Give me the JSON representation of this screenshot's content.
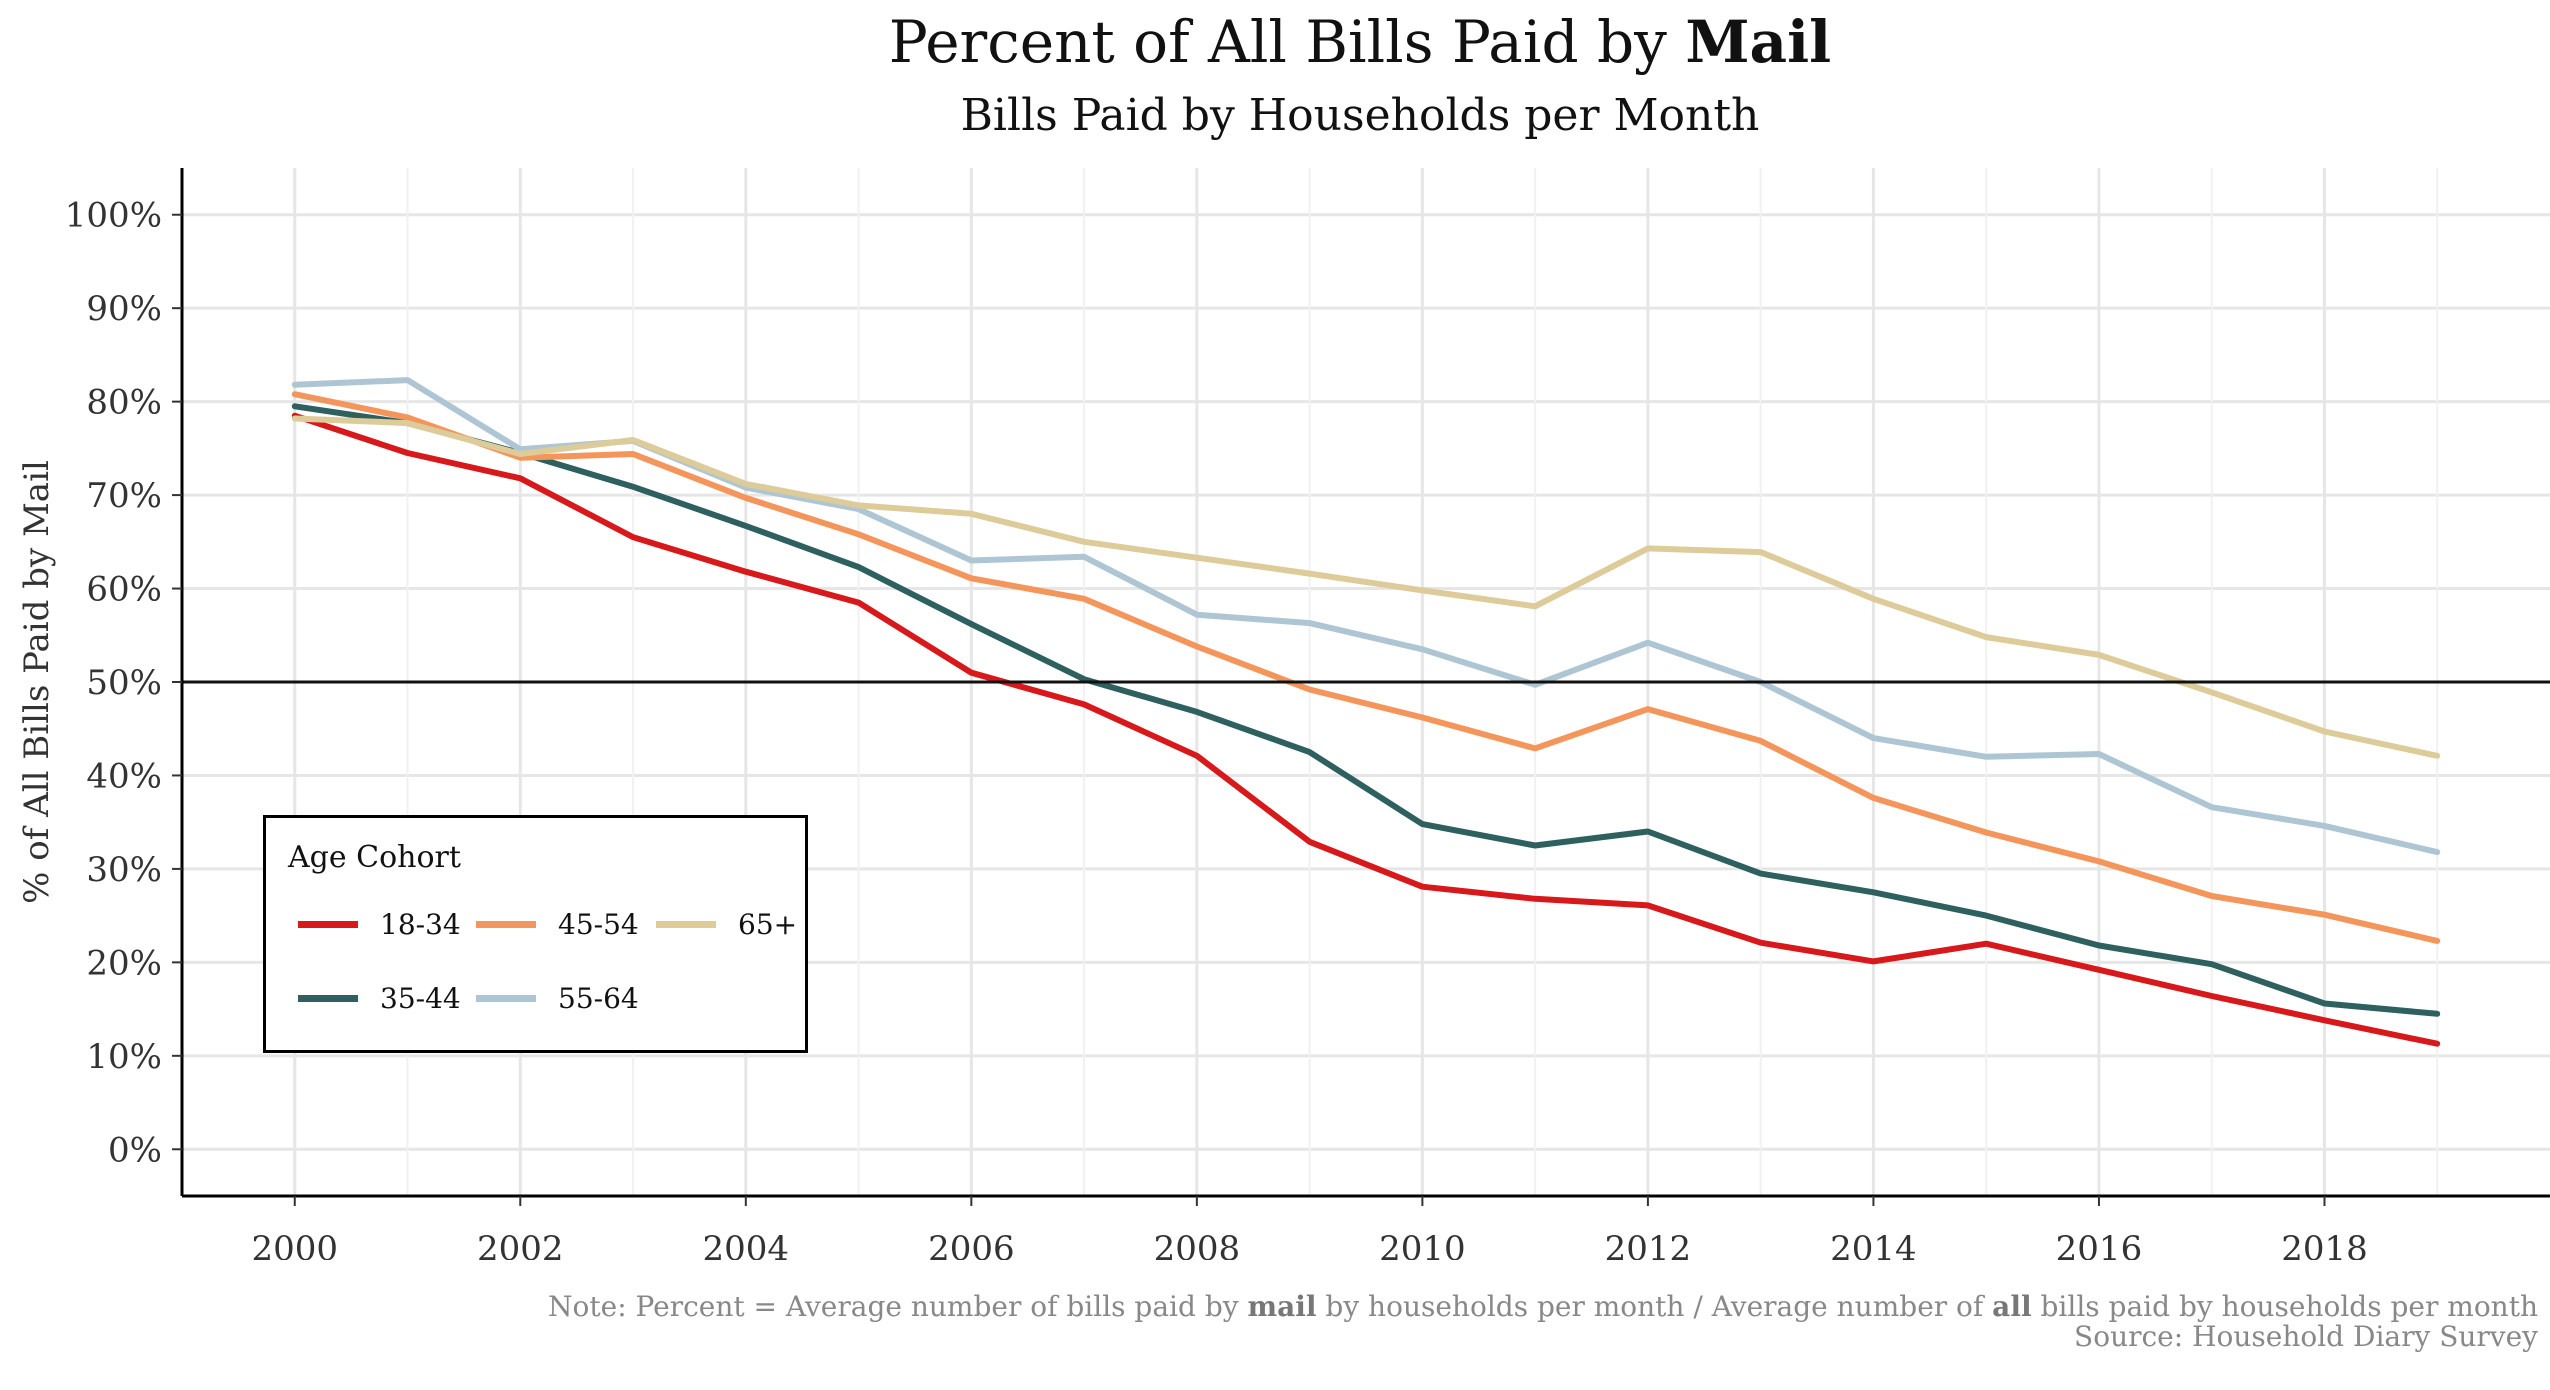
{
  "chart_data": {
    "type": "line",
    "title": "Percent of All Bills Paid by",
    "title_bold": "Mail",
    "subtitle": "Bills Paid by Households per Month",
    "xlabel": "",
    "ylabel": "% of All Bills Paid by Mail",
    "x": [
      2000,
      2001,
      2002,
      2003,
      2004,
      2005,
      2006,
      2007,
      2008,
      2009,
      2010,
      2011,
      2012,
      2013,
      2014,
      2015,
      2016,
      2017,
      2018,
      2019
    ],
    "xticks": [
      "2000",
      "2002",
      "2004",
      "2006",
      "2008",
      "2010",
      "2012",
      "2014",
      "2016",
      "2018"
    ],
    "xtick_values": [
      2000,
      2002,
      2004,
      2006,
      2008,
      2010,
      2012,
      2014,
      2016,
      2018
    ],
    "yticks": [
      "0%",
      "10%",
      "20%",
      "30%",
      "40%",
      "50%",
      "60%",
      "70%",
      "80%",
      "90%",
      "100%"
    ],
    "ytick_values": [
      0,
      10,
      20,
      30,
      40,
      50,
      60,
      70,
      80,
      90,
      100
    ],
    "xlim": [
      1999,
      2020
    ],
    "ylim": [
      -5,
      105
    ],
    "reference_line": 50,
    "grid": true,
    "legend_title": "Age Cohort",
    "legend_position": "bottom-left",
    "series": [
      {
        "name": "18-34",
        "color": "#d7191c",
        "values": [
          78.5,
          74.5,
          71.8,
          65.5,
          61.8,
          58.5,
          51,
          47.6,
          42.1,
          32.9,
          28.1,
          26.8,
          26.1,
          22.1,
          20.1,
          22,
          19.2,
          16.4,
          13.8,
          11.3
        ]
      },
      {
        "name": "35-44",
        "color": "#2f6060",
        "values": [
          79.5,
          77.7,
          74.5,
          70.9,
          66.7,
          62.3,
          56.2,
          50.3,
          46.8,
          42.5,
          34.8,
          32.5,
          34,
          29.5,
          27.5,
          25,
          21.8,
          19.8,
          15.6,
          14.5
        ]
      },
      {
        "name": "45-54",
        "color": "#f4955b",
        "values": [
          80.8,
          78.3,
          74,
          74.4,
          69.7,
          65.8,
          61.1,
          58.9,
          53.8,
          49.2,
          46.2,
          42.9,
          47.1,
          43.7,
          37.6,
          33.9,
          30.8,
          27.1,
          25.1,
          22.3
        ]
      },
      {
        "name": "55-64",
        "color": "#aec6d4",
        "values": [
          81.8,
          82.3,
          74.9,
          75.8,
          70.8,
          68.5,
          63,
          63.4,
          57.2,
          56.3,
          53.5,
          49.7,
          54.2,
          50,
          44,
          42,
          42.3,
          36.6,
          34.6,
          31.8
        ]
      },
      {
        "name": "65+",
        "color": "#ddcb9a",
        "values": [
          78.2,
          77.7,
          74.4,
          75.9,
          71.2,
          68.9,
          68,
          65,
          63.3,
          61.6,
          59.8,
          58.1,
          64.3,
          63.9,
          58.9,
          54.8,
          52.9,
          48.9,
          44.7,
          42.1
        ]
      }
    ]
  },
  "note": {
    "line1_a": "Note: Percent = Average number of bills paid by ",
    "line1_b": "mail",
    "line1_c": " by households per month / Average number of ",
    "line1_d": "all",
    "line1_e": " bills paid by households per month",
    "line2": "Source: Household Diary Survey"
  }
}
